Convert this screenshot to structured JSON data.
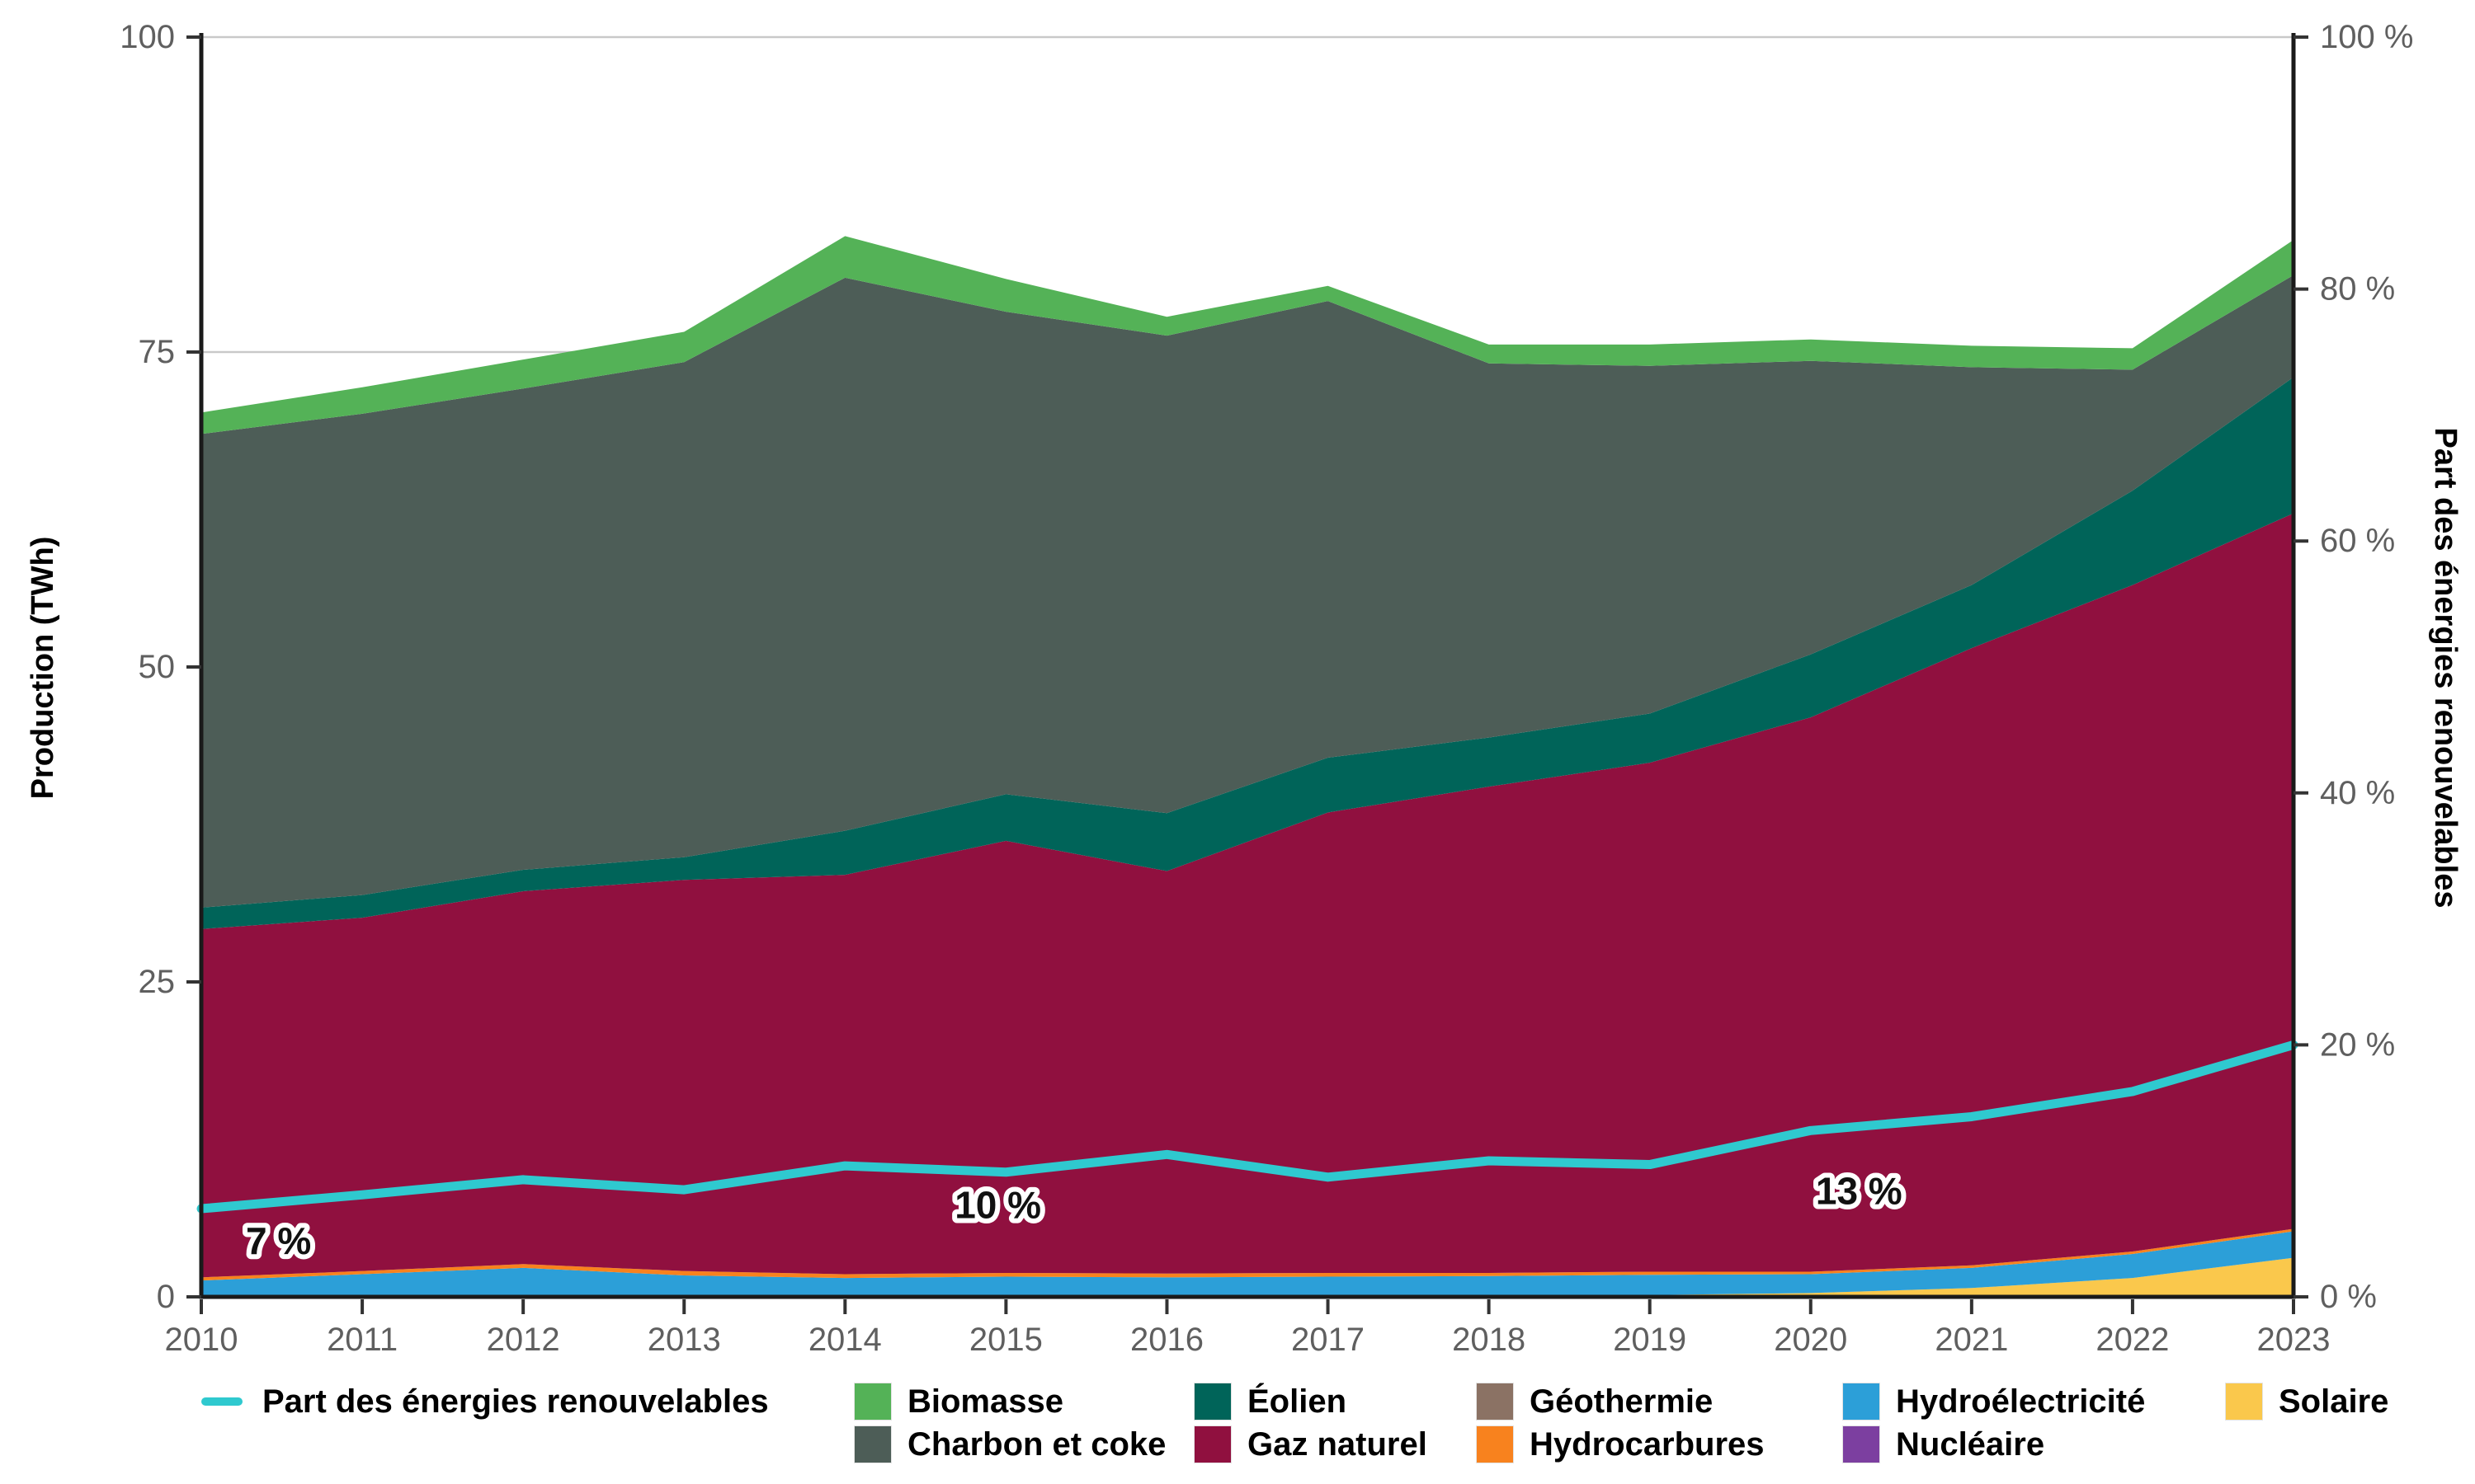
{
  "chart_data": {
    "type": "area",
    "stacked": true,
    "title": "",
    "x_label": "",
    "years": [
      2010,
      2011,
      2012,
      2013,
      2014,
      2015,
      2016,
      2017,
      2018,
      2019,
      2020,
      2021,
      2022,
      2023
    ],
    "y_left": {
      "label": "Production (TWh)",
      "ticks": [
        0,
        25,
        50,
        75,
        100
      ],
      "range": [
        0,
        100
      ],
      "grid_values": [
        25,
        50,
        75,
        100
      ]
    },
    "y_right": {
      "label": "Part des énergies renouvelables",
      "tick_values": [
        0,
        20,
        40,
        60,
        80,
        100
      ],
      "tick_labels": [
        "0 %",
        "20 %",
        "40 %",
        "60 %",
        "80 %",
        "100 %"
      ],
      "range": [
        0,
        100
      ]
    },
    "series": [
      {
        "key": "solaire",
        "name": "Solaire",
        "color": "#fac84c",
        "values": [
          0,
          0,
          0,
          0,
          0,
          0,
          0,
          0.05,
          0.1,
          0.15,
          0.3,
          0.7,
          1.5,
          3.1
        ]
      },
      {
        "key": "nucleaire",
        "name": "Nucléaire",
        "color": "#7c3fa0",
        "values": [
          0,
          0,
          0,
          0,
          0,
          0,
          0,
          0,
          0,
          0,
          0,
          0,
          0,
          0
        ]
      },
      {
        "key": "hydroelectricite",
        "name": "Hydroélectricité",
        "color": "#2c9fd8",
        "values": [
          1.3,
          1.8,
          2.3,
          1.7,
          1.5,
          1.6,
          1.55,
          1.55,
          1.55,
          1.6,
          1.5,
          1.6,
          1.9,
          2.1
        ]
      },
      {
        "key": "hydrocarbures",
        "name": "Hydrocarbures",
        "color": "#f8821e",
        "values": [
          0.25,
          0.25,
          0.3,
          0.35,
          0.3,
          0.3,
          0.3,
          0.3,
          0.25,
          0.25,
          0.2,
          0.2,
          0.2,
          0.2
        ]
      },
      {
        "key": "geothermie",
        "name": "Géothermie",
        "color": "#8b7264",
        "values": [
          0,
          0,
          0,
          0,
          0,
          0,
          0,
          0,
          0,
          0,
          0,
          0,
          0,
          0
        ]
      },
      {
        "key": "gaz",
        "name": "Gaz naturel",
        "color": "#90103f",
        "values": [
          27.65,
          28.05,
          29.6,
          31.05,
          31.7,
          34.3,
          31.95,
          36.55,
          38.6,
          40.4,
          44.0,
          49.0,
          52.9,
          56.8
        ]
      },
      {
        "key": "eolien",
        "name": "Éolien",
        "color": "#006459",
        "values": [
          1.7,
          1.8,
          1.7,
          1.8,
          3.5,
          3.7,
          4.6,
          4.35,
          3.9,
          3.9,
          5.0,
          5.0,
          7.5,
          10.8
        ]
      },
      {
        "key": "charbon",
        "name": "Charbon et coke",
        "color": "#4d5d57",
        "values": [
          37.6,
          38.2,
          38.2,
          39.3,
          43.9,
          38.3,
          37.9,
          36.25,
          29.7,
          27.6,
          23.3,
          17.3,
          9.6,
          8.1
        ]
      },
      {
        "key": "biomasse",
        "name": "Biomasse",
        "color": "#54b257",
        "values": [
          1.7,
          2.1,
          2.3,
          2.4,
          3.3,
          2.6,
          1.5,
          1.2,
          1.5,
          1.7,
          1.7,
          1.7,
          1.7,
          2.8
        ]
      }
    ],
    "line_series": {
      "key": "part_renouvelables",
      "name": "Part des énergies renouvelables",
      "color": "#2fc9cf",
      "axis": "right",
      "values": [
        7.0,
        8.1,
        9.3,
        8.5,
        10.4,
        9.9,
        11.3,
        9.5,
        10.8,
        10.5,
        13.2,
        14.3,
        16.3,
        20.0
      ]
    },
    "annotations": [
      {
        "text": "7 %",
        "year": 2010.48,
        "value": 4.45
      },
      {
        "text": "10 %",
        "year": 2014.95,
        "value": 7.3
      },
      {
        "text": "13 %",
        "year": 2020.3,
        "value": 8.4
      }
    ],
    "colors": {
      "grid": "#c9c9c9",
      "axis": "#1a1a1a",
      "tick_text": "#5f5f5f"
    }
  },
  "legend": {
    "line_item": {
      "label": "Part des énergies renouvelables"
    },
    "items": {
      "biomasse": {
        "label": "Biomasse"
      },
      "charbon": {
        "label": "Charbon et coke"
      },
      "eolien": {
        "label": "Éolien"
      },
      "gaz": {
        "label": "Gaz naturel"
      },
      "geothermie": {
        "label": "Géothermie"
      },
      "hydrocarbures": {
        "label": "Hydrocarbures"
      },
      "hydroelectricite": {
        "label": "Hydroélectricité"
      },
      "nucleaire": {
        "label": "Nucléaire"
      },
      "solaire": {
        "label": "Solaire"
      }
    }
  }
}
